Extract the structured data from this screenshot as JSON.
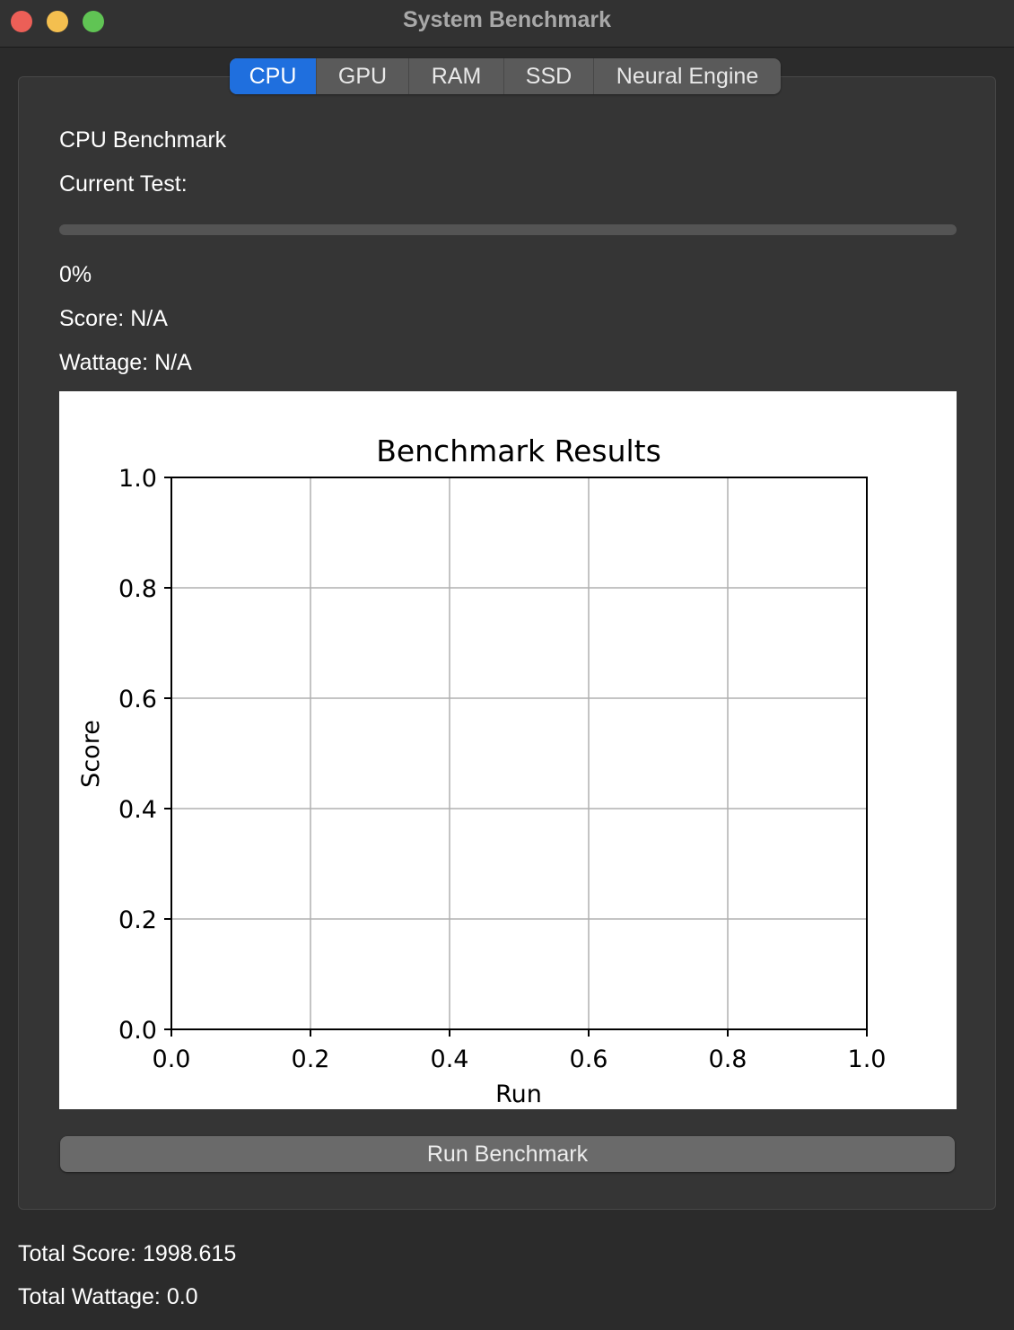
{
  "window": {
    "title": "System Benchmark"
  },
  "tabs": [
    {
      "label": "CPU",
      "active": true
    },
    {
      "label": "GPU",
      "active": false
    },
    {
      "label": "RAM",
      "active": false
    },
    {
      "label": "SSD",
      "active": false
    },
    {
      "label": "Neural Engine",
      "active": false
    }
  ],
  "panel": {
    "heading": "CPU Benchmark",
    "current_test": "Current Test:",
    "progress_percent": 0,
    "progress_text": "0%",
    "score": "Score: N/A",
    "wattage": "Wattage: N/A",
    "run_button": "Run Benchmark"
  },
  "chart_data": {
    "type": "line",
    "title": "Benchmark Results",
    "xlabel": "Run",
    "ylabel": "Score",
    "xlim": [
      0.0,
      1.0
    ],
    "ylim": [
      0.0,
      1.0
    ],
    "xticks": [
      "0.0",
      "0.2",
      "0.4",
      "0.6",
      "0.8",
      "1.0"
    ],
    "yticks": [
      "0.0",
      "0.2",
      "0.4",
      "0.6",
      "0.8",
      "1.0"
    ],
    "grid": true,
    "series": []
  },
  "footer": {
    "total_score": "Total Score: 1998.615",
    "total_wattage": "Total Wattage: 0.0"
  },
  "colors": {
    "accent": "#1f6fde",
    "close": "#ec5f57",
    "minimize": "#f4bf4f",
    "maximize": "#60c454"
  }
}
